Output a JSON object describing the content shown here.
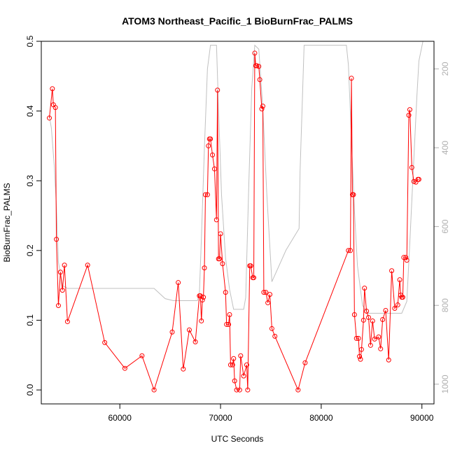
{
  "chart_data": {
    "type": "line",
    "title": "ATOM3 Northeast_Pacific_1 BioBurnFrac_PALMS",
    "xlabel": "UTC Seconds",
    "ylabel": "BioBurnFrac_PALMS",
    "xlim": [
      52200,
      91200
    ],
    "ylim": [
      -0.02,
      0.5
    ],
    "y2lim": [
      1050,
      130
    ],
    "x_ticks": [
      60000,
      70000,
      80000,
      90000
    ],
    "y_ticks": [
      0.0,
      0.1,
      0.2,
      0.3,
      0.4,
      0.5
    ],
    "y2_ticks": [
      200,
      400,
      600,
      800,
      1000
    ],
    "x_tick_labels": [
      "60000",
      "70000",
      "80000",
      "90000"
    ],
    "y_tick_labels": [
      "0.0",
      "0.1",
      "0.2",
      "0.3",
      "0.4",
      "0.5"
    ],
    "y2_tick_labels": [
      "200",
      "400",
      "600",
      "800",
      "1000"
    ],
    "grid": false,
    "series": [
      {
        "color": "#ff0000",
        "marker": "open-circle",
        "axis": "left",
        "points": [
          [
            53000,
            0.39
          ],
          [
            53300,
            0.432
          ],
          [
            53400,
            0.409
          ],
          [
            53600,
            0.405
          ],
          [
            53700,
            0.216
          ],
          [
            53900,
            0.121
          ],
          [
            54100,
            0.169
          ],
          [
            54300,
            0.143
          ],
          [
            54500,
            0.179
          ],
          [
            54800,
            0.098
          ],
          [
            56800,
            0.179
          ],
          [
            58500,
            0.068
          ],
          [
            60500,
            0.031
          ],
          [
            62200,
            0.049
          ],
          [
            63400,
            0.0
          ],
          [
            65200,
            0.083
          ],
          [
            65800,
            0.154
          ],
          [
            66300,
            0.03
          ],
          [
            66900,
            0.086
          ],
          [
            67500,
            0.069
          ],
          [
            67900,
            0.135
          ],
          [
            68000,
            0.135
          ],
          [
            68100,
            0.099
          ],
          [
            68200,
            0.129
          ],
          [
            68300,
            0.133
          ],
          [
            68400,
            0.175
          ],
          [
            68500,
            0.28
          ],
          [
            68700,
            0.28
          ],
          [
            68800,
            0.35
          ],
          [
            68900,
            0.36
          ],
          [
            69000,
            0.36
          ],
          [
            69200,
            0.337
          ],
          [
            69400,
            0.317
          ],
          [
            69600,
            0.244
          ],
          [
            69700,
            0.43
          ],
          [
            69800,
            0.188
          ],
          [
            69900,
            0.188
          ],
          [
            70000,
            0.224
          ],
          [
            70200,
            0.181
          ],
          [
            70500,
            0.14
          ],
          [
            70600,
            0.094
          ],
          [
            70800,
            0.094
          ],
          [
            70900,
            0.108
          ],
          [
            71000,
            0.036
          ],
          [
            71200,
            0.036
          ],
          [
            71300,
            0.045
          ],
          [
            71400,
            0.013
          ],
          [
            71600,
            0.0
          ],
          [
            71900,
            0.0
          ],
          [
            72000,
            0.049
          ],
          [
            72300,
            0.02
          ],
          [
            72600,
            0.036
          ],
          [
            72700,
            0.0
          ],
          [
            72900,
            0.178
          ],
          [
            73000,
            0.178
          ],
          [
            73200,
            0.161
          ],
          [
            73300,
            0.161
          ],
          [
            73400,
            0.483
          ],
          [
            73500,
            0.465
          ],
          [
            73600,
            0.465
          ],
          [
            73800,
            0.464
          ],
          [
            73900,
            0.445
          ],
          [
            74100,
            0.403
          ],
          [
            74200,
            0.407
          ],
          [
            74300,
            0.14
          ],
          [
            74500,
            0.14
          ],
          [
            74700,
            0.125
          ],
          [
            74900,
            0.137
          ],
          [
            75100,
            0.088
          ],
          [
            75400,
            0.077
          ],
          [
            77700,
            0.0
          ],
          [
            78400,
            0.039
          ],
          [
            82700,
            0.2
          ],
          [
            82900,
            0.2
          ],
          [
            83000,
            0.447
          ],
          [
            83100,
            0.28
          ],
          [
            83200,
            0.28
          ],
          [
            83300,
            0.108
          ],
          [
            83500,
            0.074
          ],
          [
            83700,
            0.074
          ],
          [
            83800,
            0.048
          ],
          [
            83900,
            0.044
          ],
          [
            84000,
            0.058
          ],
          [
            84200,
            0.1
          ],
          [
            84300,
            0.146
          ],
          [
            84500,
            0.113
          ],
          [
            84700,
            0.104
          ],
          [
            84900,
            0.064
          ],
          [
            85100,
            0.099
          ],
          [
            85300,
            0.073
          ],
          [
            85700,
            0.076
          ],
          [
            85900,
            0.059
          ],
          [
            86100,
            0.101
          ],
          [
            86400,
            0.114
          ],
          [
            86700,
            0.043
          ],
          [
            87000,
            0.171
          ],
          [
            87300,
            0.117
          ],
          [
            87600,
            0.122
          ],
          [
            87800,
            0.158
          ],
          [
            87900,
            0.136
          ],
          [
            88000,
            0.133
          ],
          [
            88100,
            0.133
          ],
          [
            88200,
            0.19
          ],
          [
            88400,
            0.19
          ],
          [
            88500,
            0.186
          ],
          [
            88700,
            0.394
          ],
          [
            88800,
            0.402
          ],
          [
            89000,
            0.319
          ],
          [
            89200,
            0.299
          ],
          [
            89400,
            0.298
          ],
          [
            89600,
            0.302
          ],
          [
            89700,
            0.302
          ]
        ]
      },
      {
        "color": "#c0c0c0",
        "marker": "none",
        "axis": "right",
        "points": [
          [
            53000,
            320
          ],
          [
            53200,
            350
          ],
          [
            53500,
            450
          ],
          [
            53700,
            550
          ],
          [
            53900,
            690
          ],
          [
            54300,
            750
          ],
          [
            54800,
            757
          ],
          [
            57000,
            757
          ],
          [
            60000,
            757
          ],
          [
            62000,
            757
          ],
          [
            63400,
            757
          ],
          [
            64500,
            783
          ],
          [
            65300,
            788
          ],
          [
            66000,
            788
          ],
          [
            66500,
            788
          ],
          [
            67700,
            788
          ],
          [
            67900,
            770
          ],
          [
            68100,
            630
          ],
          [
            68400,
            400
          ],
          [
            68700,
            200
          ],
          [
            69000,
            140
          ],
          [
            69600,
            140
          ],
          [
            69800,
            300
          ],
          [
            70100,
            520
          ],
          [
            70500,
            680
          ],
          [
            70900,
            760
          ],
          [
            71300,
            810
          ],
          [
            71800,
            810
          ],
          [
            72300,
            810
          ],
          [
            72500,
            780
          ],
          [
            72800,
            500
          ],
          [
            73100,
            250
          ],
          [
            73400,
            140
          ],
          [
            73800,
            150
          ],
          [
            74200,
            300
          ],
          [
            74600,
            520
          ],
          [
            75100,
            740
          ],
          [
            76500,
            660
          ],
          [
            77800,
            605
          ],
          [
            77900,
            460
          ],
          [
            78300,
            140
          ],
          [
            82500,
            140
          ],
          [
            82700,
            190
          ],
          [
            83000,
            380
          ],
          [
            83300,
            560
          ],
          [
            83600,
            700
          ],
          [
            84100,
            800
          ],
          [
            84600,
            820
          ],
          [
            85000,
            820
          ],
          [
            88000,
            820
          ],
          [
            88500,
            790
          ],
          [
            88800,
            640
          ],
          [
            89100,
            480
          ],
          [
            89500,
            270
          ],
          [
            89700,
            180
          ],
          [
            90100,
            130
          ]
        ]
      }
    ]
  }
}
